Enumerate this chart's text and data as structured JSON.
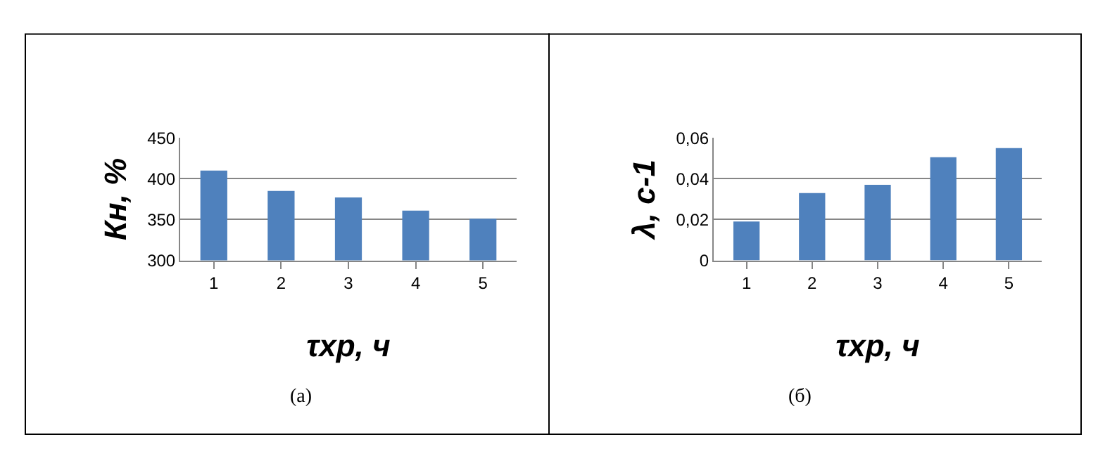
{
  "chart_data": [
    {
      "type": "bar",
      "xlabel": "τхр, ч",
      "ylabel": "Кн, %",
      "categories": [
        "1",
        "2",
        "3",
        "4",
        "5"
      ],
      "values": [
        410,
        385,
        377,
        361,
        351
      ],
      "color": "#4f81bd",
      "ylim": [
        300,
        450
      ],
      "yticks": [
        300,
        350,
        400,
        450
      ],
      "grid": "y",
      "annotations": [
        "(а)"
      ]
    },
    {
      "type": "bar",
      "xlabel": "τхр, ч",
      "ylabel": "λ, с-1",
      "categories": [
        "1",
        "2",
        "3",
        "4",
        "5"
      ],
      "values": [
        0.019,
        0.033,
        0.037,
        0.0505,
        0.055
      ],
      "color": "#4f81bd",
      "ylim": [
        0,
        0.06
      ],
      "yticks": [
        0,
        {
          "value": 0.02,
          "label": "0,02"
        },
        {
          "value": 0.04,
          "label": "0,04"
        },
        {
          "value": 0.06,
          "label": "0,06"
        }
      ],
      "grid": "y",
      "annotations": [
        "(б)"
      ]
    }
  ]
}
